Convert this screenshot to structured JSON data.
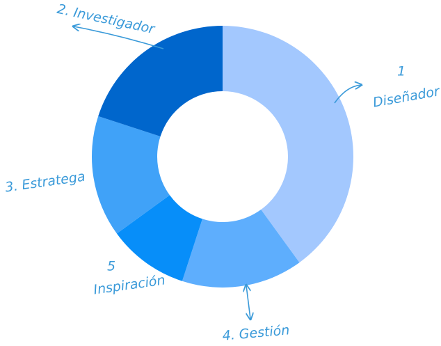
{
  "chart_data": {
    "type": "donut",
    "categories": [
      [
        "1",
        "Diseñador"
      ],
      [
        "4. Gestión"
      ],
      [
        "5",
        "Inspiración"
      ],
      [
        "3. Estratega"
      ],
      [
        "2. Investigador"
      ]
    ],
    "values": [
      40,
      15,
      10,
      15,
      20
    ],
    "colors": [
      "#a3c8fe",
      "#5eaefd",
      "#078ef9",
      "#40a2f8",
      "#0066cc"
    ]
  }
}
